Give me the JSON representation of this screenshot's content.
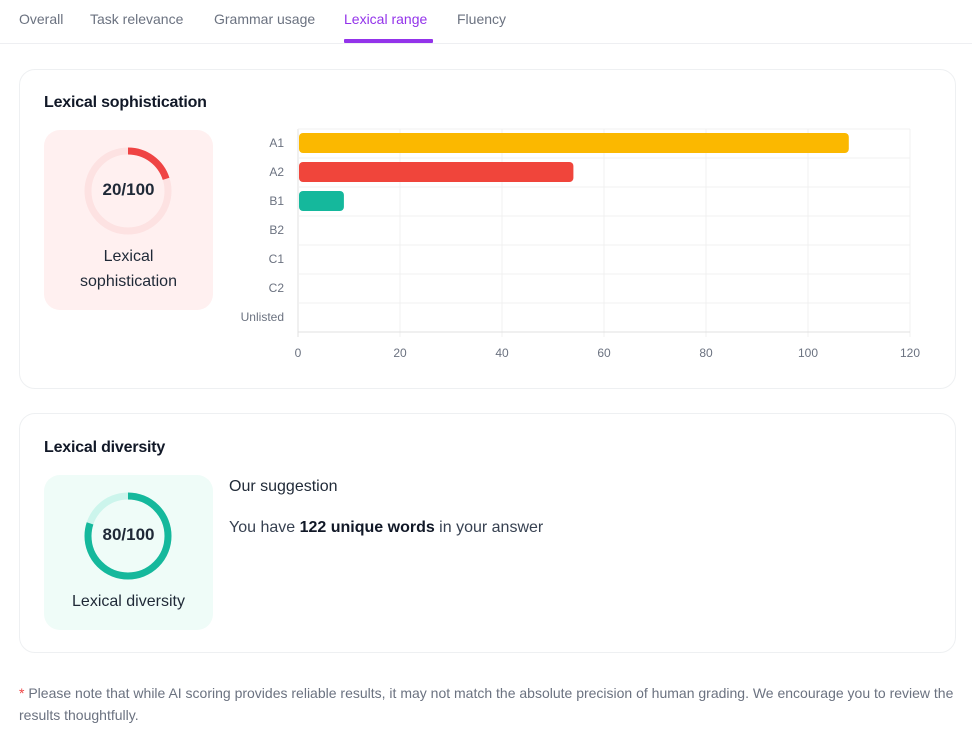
{
  "tabs": [
    {
      "label": "Overall",
      "active": false
    },
    {
      "label": "Task relevance",
      "active": false
    },
    {
      "label": "Grammar usage",
      "active": false
    },
    {
      "label": "Lexical range",
      "active": true
    },
    {
      "label": "Fluency",
      "active": false
    }
  ],
  "sophistication": {
    "title": "Lexical sophistication",
    "score_text": "20/100",
    "score_value": 20,
    "score_max": 100,
    "label_line1": "Lexical",
    "label_line2": "sophistication",
    "colors": {
      "ring": "#ef4444",
      "track": "#fde2e2",
      "bg": "#fff0f0"
    }
  },
  "chart_data": {
    "type": "bar",
    "orientation": "horizontal",
    "categories": [
      "A1",
      "A2",
      "B1",
      "B2",
      "C1",
      "C2",
      "Unlisted"
    ],
    "values": [
      108,
      54,
      9,
      0,
      0,
      0,
      0
    ],
    "colors": [
      "#fbb800",
      "#f0453b",
      "#15b89c",
      "#15b89c",
      "#15b89c",
      "#15b89c",
      "#15b89c"
    ],
    "xlim": [
      0,
      120
    ],
    "xticks": [
      "0",
      "20",
      "40",
      "60",
      "80",
      "100",
      "120"
    ],
    "grid": true,
    "title": "",
    "xlabel": "",
    "ylabel": ""
  },
  "diversity": {
    "title": "Lexical diversity",
    "score_text": "80/100",
    "score_value": 80,
    "score_max": 100,
    "label": "Lexical diversity",
    "colors": {
      "ring": "#15b89c",
      "track": "#ccf5ec",
      "bg": "#effcf8"
    },
    "suggestion_title": "Our suggestion",
    "suggestion_prefix": "You have ",
    "suggestion_bold": "122 unique words",
    "suggestion_suffix": " in your answer"
  },
  "note": {
    "star": "*",
    "text": " Please note that while AI scoring provides reliable results, it may not match the absolute precision of human grading. We encourage you to review the results thoughtfully."
  }
}
